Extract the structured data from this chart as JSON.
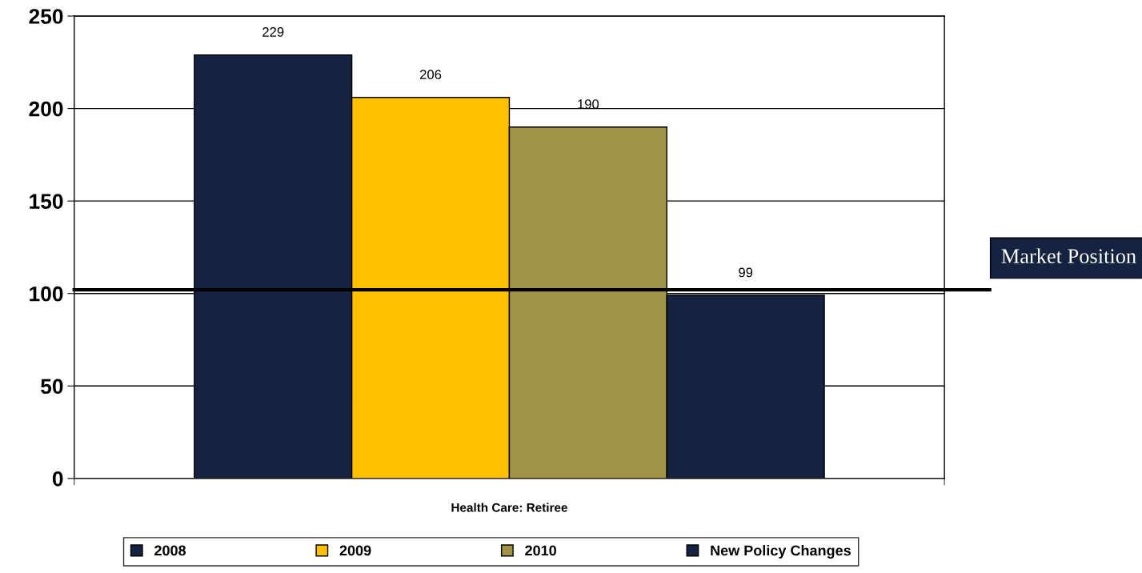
{
  "chart_data": {
    "type": "bar",
    "categories": [
      "Health Care: Retiree"
    ],
    "series": [
      {
        "name": "2008",
        "color": "#152341",
        "values": [
          229
        ]
      },
      {
        "name": "2009",
        "color": "#ffc000",
        "values": [
          206
        ]
      },
      {
        "name": "2010",
        "color": "#a09345",
        "values": [
          190
        ]
      },
      {
        "name": "New Policy Changes",
        "color": "#152341",
        "values": [
          99
        ]
      }
    ],
    "ylim": [
      0,
      250
    ],
    "yticks": [
      0,
      50,
      100,
      150,
      200,
      250
    ],
    "ref_lines": [
      {
        "axis": "y",
        "value": 102,
        "label": "Market Position",
        "color": "#000000"
      }
    ],
    "data_labels": true,
    "grid": "y",
    "legend": "bottom"
  }
}
